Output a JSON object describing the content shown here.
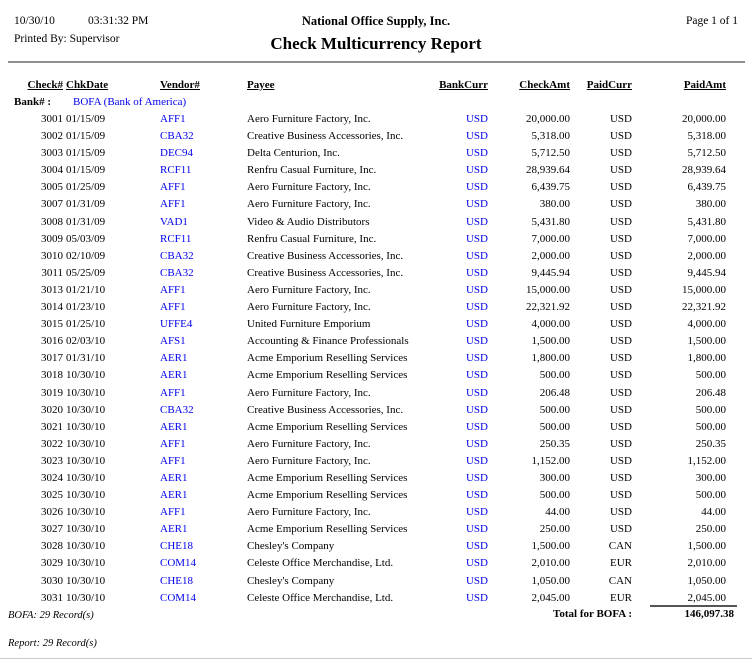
{
  "header": {
    "date": "10/30/10",
    "time": "03:31:32 PM",
    "company": "National Office Supply, Inc.",
    "page": "Page 1 of 1",
    "printed_by": "Printed By: Supervisor",
    "title": "Check Multicurrency Report"
  },
  "table": {
    "columns": [
      "Check#",
      "ChkDate",
      "Vendor#",
      "Payee",
      "BankCurr",
      "CheckAmt",
      "PaidCurr",
      "PaidAmt"
    ],
    "bank_label": "Bank# :",
    "bank_value": "BOFA (Bank of America)",
    "rows": [
      [
        "3001",
        "01/15/09",
        "AFF1",
        "Aero Furniture Factory, Inc.",
        "USD",
        "20,000.00",
        "USD",
        "20,000.00"
      ],
      [
        "3002",
        "01/15/09",
        "CBA32",
        "Creative Business Accessories, Inc.",
        "USD",
        "5,318.00",
        "USD",
        "5,318.00"
      ],
      [
        "3003",
        "01/15/09",
        "DEC94",
        "Delta Centurion, Inc.",
        "USD",
        "5,712.50",
        "USD",
        "5,712.50"
      ],
      [
        "3004",
        "01/15/09",
        "RCF11",
        "Renfru Casual Furniture, Inc.",
        "USD",
        "28,939.64",
        "USD",
        "28,939.64"
      ],
      [
        "3005",
        "01/25/09",
        "AFF1",
        "Aero Furniture Factory, Inc.",
        "USD",
        "6,439.75",
        "USD",
        "6,439.75"
      ],
      [
        "3007",
        "01/31/09",
        "AFF1",
        "Aero Furniture Factory, Inc.",
        "USD",
        "380.00",
        "USD",
        "380.00"
      ],
      [
        "3008",
        "01/31/09",
        "VAD1",
        "Video & Audio Distributors",
        "USD",
        "5,431.80",
        "USD",
        "5,431.80"
      ],
      [
        "3009",
        "05/03/09",
        "RCF11",
        "Renfru Casual Furniture, Inc.",
        "USD",
        "7,000.00",
        "USD",
        "7,000.00"
      ],
      [
        "3010",
        "02/10/09",
        "CBA32",
        "Creative Business Accessories, Inc.",
        "USD",
        "2,000.00",
        "USD",
        "2,000.00"
      ],
      [
        "3011",
        "05/25/09",
        "CBA32",
        "Creative Business Accessories, Inc.",
        "USD",
        "9,445.94",
        "USD",
        "9,445.94"
      ],
      [
        "3013",
        "01/21/10",
        "AFF1",
        "Aero Furniture Factory, Inc.",
        "USD",
        "15,000.00",
        "USD",
        "15,000.00"
      ],
      [
        "3014",
        "01/23/10",
        "AFF1",
        "Aero Furniture Factory, Inc.",
        "USD",
        "22,321.92",
        "USD",
        "22,321.92"
      ],
      [
        "3015",
        "01/25/10",
        "UFFE4",
        "United Furniture Emporium",
        "USD",
        "4,000.00",
        "USD",
        "4,000.00"
      ],
      [
        "3016",
        "02/03/10",
        "AFS1",
        "Accounting & Finance Professionals",
        "USD",
        "1,500.00",
        "USD",
        "1,500.00"
      ],
      [
        "3017",
        "01/31/10",
        "AER1",
        "Acme Emporium Reselling Services",
        "USD",
        "1,800.00",
        "USD",
        "1,800.00"
      ],
      [
        "3018",
        "10/30/10",
        "AER1",
        "Acme Emporium Reselling Services",
        "USD",
        "500.00",
        "USD",
        "500.00"
      ],
      [
        "3019",
        "10/30/10",
        "AFF1",
        "Aero Furniture Factory, Inc.",
        "USD",
        "206.48",
        "USD",
        "206.48"
      ],
      [
        "3020",
        "10/30/10",
        "CBA32",
        "Creative Business Accessories, Inc.",
        "USD",
        "500.00",
        "USD",
        "500.00"
      ],
      [
        "3021",
        "10/30/10",
        "AER1",
        "Acme Emporium Reselling Services",
        "USD",
        "500.00",
        "USD",
        "500.00"
      ],
      [
        "3022",
        "10/30/10",
        "AFF1",
        "Aero Furniture Factory, Inc.",
        "USD",
        "250.35",
        "USD",
        "250.35"
      ],
      [
        "3023",
        "10/30/10",
        "AFF1",
        "Aero Furniture Factory, Inc.",
        "USD",
        "1,152.00",
        "USD",
        "1,152.00"
      ],
      [
        "3024",
        "10/30/10",
        "AER1",
        "Acme Emporium Reselling Services",
        "USD",
        "300.00",
        "USD",
        "300.00"
      ],
      [
        "3025",
        "10/30/10",
        "AER1",
        "Acme Emporium Reselling Services",
        "USD",
        "500.00",
        "USD",
        "500.00"
      ],
      [
        "3026",
        "10/30/10",
        "AFF1",
        "Aero Furniture Factory, Inc.",
        "USD",
        "44.00",
        "USD",
        "44.00"
      ],
      [
        "3027",
        "10/30/10",
        "AER1",
        "Acme Emporium Reselling Services",
        "USD",
        "250.00",
        "USD",
        "250.00"
      ],
      [
        "3028",
        "10/30/10",
        "CHE18",
        "Chesley's Company",
        "USD",
        "1,500.00",
        "CAN",
        "1,500.00"
      ],
      [
        "3029",
        "10/30/10",
        "COM14",
        "Celeste Office Merchandise, Ltd.",
        "USD",
        "2,010.00",
        "EUR",
        "2,010.00"
      ],
      [
        "3030",
        "10/30/10",
        "CHE18",
        "Chesley's Company",
        "USD",
        "1,050.00",
        "CAN",
        "1,050.00"
      ],
      [
        "3031",
        "10/30/10",
        "COM14",
        "Celeste Office Merchandise, Ltd.",
        "USD",
        "2,045.00",
        "EUR",
        "2,045.00"
      ]
    ]
  },
  "footer": {
    "bank_records": "BOFA: 29 Record(s)",
    "total_label": "Total for BOFA :",
    "total_amount": "146,097.38",
    "report_records": "Report: 29 Record(s)"
  },
  "colors": {
    "link_blue": "#0000EE",
    "rule_gray": "#909090"
  }
}
